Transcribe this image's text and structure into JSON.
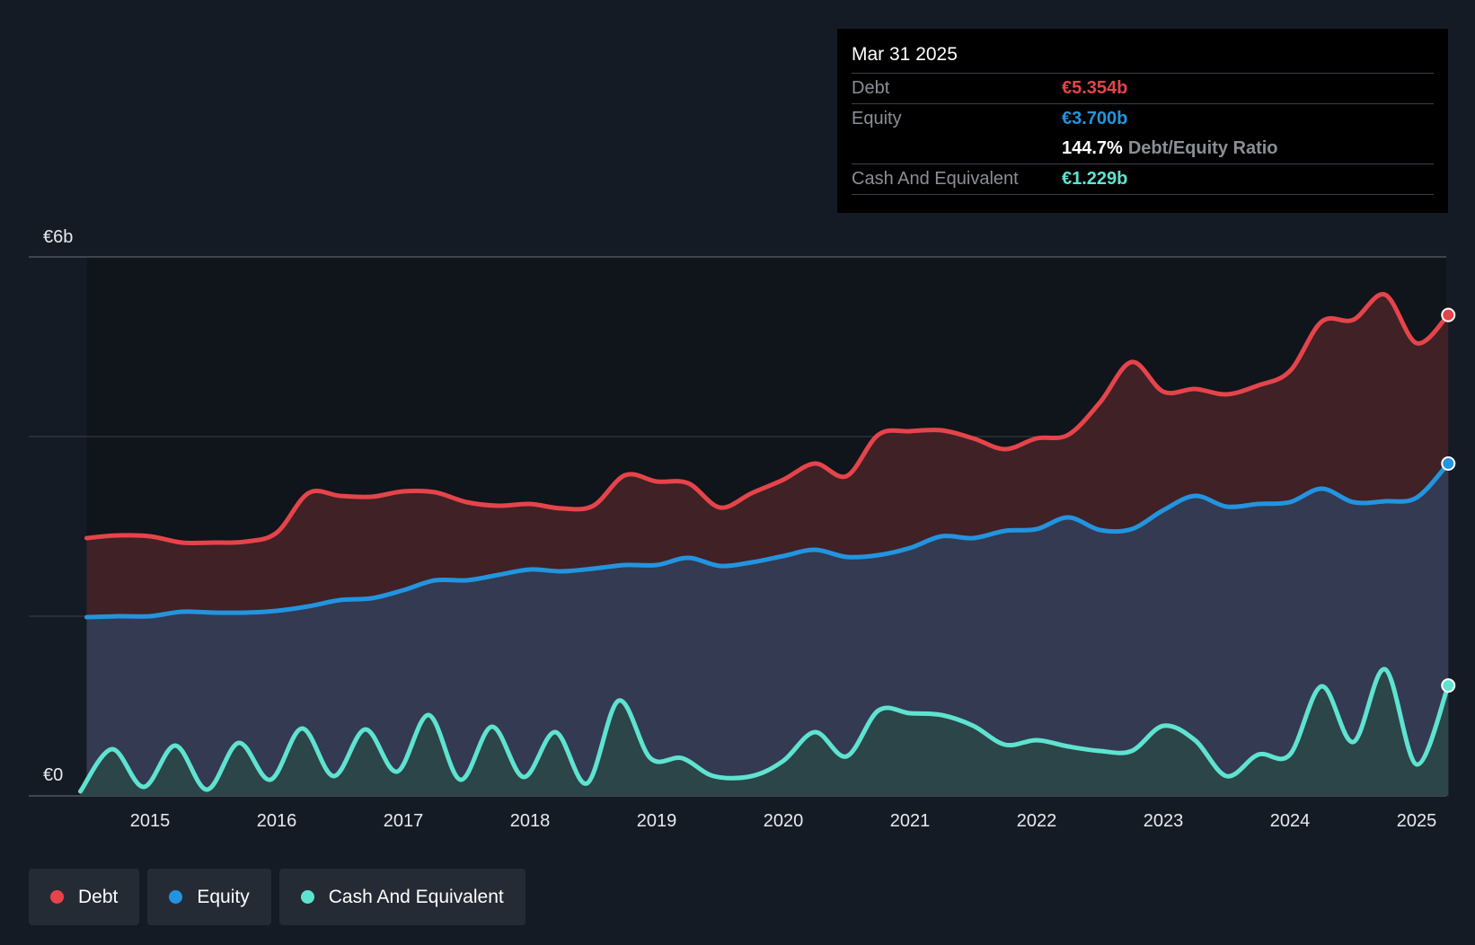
{
  "tooltip": {
    "date": "Mar 31 2025",
    "debt_label": "Debt",
    "debt_value": "€5.354b",
    "equity_label": "Equity",
    "equity_value": "€3.700b",
    "ratio_value": "144.7%",
    "ratio_label": "Debt/Equity Ratio",
    "cash_label": "Cash And Equivalent",
    "cash_value": "€1.229b"
  },
  "legend": [
    {
      "label": "Debt",
      "color": "#e5444a"
    },
    {
      "label": "Equity",
      "color": "#2394df"
    },
    {
      "label": "Cash And Equivalent",
      "color": "#5fe3d0"
    }
  ],
  "chart_data": {
    "type": "area",
    "title": "",
    "xlabel": "",
    "ylabel": "",
    "ylim": [
      0,
      6
    ],
    "y_unit": "€b",
    "y_tick_labels": [
      {
        "value": 6,
        "label": "€6b"
      },
      {
        "value": 0,
        "label": "€0"
      }
    ],
    "y_gridlines": [
      0,
      2,
      4,
      6
    ],
    "x_range": [
      2014.45,
      2025.25
    ],
    "x_ticks": [
      2015,
      2016,
      2017,
      2018,
      2019,
      2020,
      2021,
      2022,
      2023,
      2024,
      2025
    ],
    "x_tick_labels": [
      "2015",
      "2016",
      "2017",
      "2018",
      "2019",
      "2020",
      "2021",
      "2022",
      "2023",
      "2024",
      "2025"
    ],
    "series": [
      {
        "name": "Debt",
        "color": "#e5444a",
        "fill": "#3f2126",
        "points": [
          [
            2014.5,
            2.87
          ],
          [
            2014.75,
            2.9
          ],
          [
            2015.0,
            2.89
          ],
          [
            2015.25,
            2.82
          ],
          [
            2015.5,
            2.82
          ],
          [
            2015.75,
            2.83
          ],
          [
            2016.0,
            2.93
          ],
          [
            2016.25,
            3.37
          ],
          [
            2016.5,
            3.34
          ],
          [
            2016.75,
            3.33
          ],
          [
            2017.0,
            3.39
          ],
          [
            2017.25,
            3.38
          ],
          [
            2017.5,
            3.27
          ],
          [
            2017.75,
            3.23
          ],
          [
            2018.0,
            3.25
          ],
          [
            2018.25,
            3.2
          ],
          [
            2018.5,
            3.23
          ],
          [
            2018.75,
            3.57
          ],
          [
            2019.0,
            3.5
          ],
          [
            2019.25,
            3.48
          ],
          [
            2019.5,
            3.21
          ],
          [
            2019.75,
            3.37
          ],
          [
            2020.0,
            3.52
          ],
          [
            2020.25,
            3.7
          ],
          [
            2020.5,
            3.56
          ],
          [
            2020.75,
            4.02
          ],
          [
            2021.0,
            4.06
          ],
          [
            2021.25,
            4.07
          ],
          [
            2021.5,
            3.98
          ],
          [
            2021.75,
            3.86
          ],
          [
            2022.0,
            3.98
          ],
          [
            2022.25,
            4.02
          ],
          [
            2022.5,
            4.38
          ],
          [
            2022.75,
            4.83
          ],
          [
            2023.0,
            4.5
          ],
          [
            2023.25,
            4.53
          ],
          [
            2023.5,
            4.47
          ],
          [
            2023.75,
            4.57
          ],
          [
            2024.0,
            4.73
          ],
          [
            2024.25,
            5.28
          ],
          [
            2024.5,
            5.3
          ],
          [
            2024.75,
            5.58
          ],
          [
            2025.0,
            5.04
          ],
          [
            2025.25,
            5.354
          ]
        ]
      },
      {
        "name": "Equity",
        "color": "#2394df",
        "fill": "#333a52",
        "points": [
          [
            2014.5,
            1.99
          ],
          [
            2014.75,
            2.0
          ],
          [
            2015.0,
            2.0
          ],
          [
            2015.25,
            2.05
          ],
          [
            2015.5,
            2.04
          ],
          [
            2015.75,
            2.04
          ],
          [
            2016.0,
            2.06
          ],
          [
            2016.25,
            2.11
          ],
          [
            2016.5,
            2.18
          ],
          [
            2016.75,
            2.2
          ],
          [
            2017.0,
            2.29
          ],
          [
            2017.25,
            2.4
          ],
          [
            2017.5,
            2.4
          ],
          [
            2017.75,
            2.46
          ],
          [
            2018.0,
            2.52
          ],
          [
            2018.25,
            2.5
          ],
          [
            2018.5,
            2.53
          ],
          [
            2018.75,
            2.57
          ],
          [
            2019.0,
            2.57
          ],
          [
            2019.25,
            2.65
          ],
          [
            2019.5,
            2.56
          ],
          [
            2019.75,
            2.6
          ],
          [
            2020.0,
            2.67
          ],
          [
            2020.25,
            2.74
          ],
          [
            2020.5,
            2.66
          ],
          [
            2020.75,
            2.68
          ],
          [
            2021.0,
            2.76
          ],
          [
            2021.25,
            2.89
          ],
          [
            2021.5,
            2.87
          ],
          [
            2021.75,
            2.95
          ],
          [
            2022.0,
            2.97
          ],
          [
            2022.25,
            3.1
          ],
          [
            2022.5,
            2.96
          ],
          [
            2022.75,
            2.97
          ],
          [
            2023.0,
            3.18
          ],
          [
            2023.25,
            3.34
          ],
          [
            2023.5,
            3.22
          ],
          [
            2023.75,
            3.25
          ],
          [
            2024.0,
            3.27
          ],
          [
            2024.25,
            3.42
          ],
          [
            2024.5,
            3.27
          ],
          [
            2024.75,
            3.28
          ],
          [
            2025.0,
            3.32
          ],
          [
            2025.25,
            3.7
          ]
        ]
      },
      {
        "name": "Cash And Equivalent",
        "color": "#5fe3d0",
        "fill": "#2b4548",
        "points": [
          [
            2014.45,
            0.05
          ],
          [
            2014.7,
            0.52
          ],
          [
            2014.95,
            0.1
          ],
          [
            2015.2,
            0.56
          ],
          [
            2015.45,
            0.07
          ],
          [
            2015.7,
            0.59
          ],
          [
            2015.95,
            0.18
          ],
          [
            2016.2,
            0.75
          ],
          [
            2016.45,
            0.22
          ],
          [
            2016.7,
            0.74
          ],
          [
            2016.95,
            0.27
          ],
          [
            2017.2,
            0.9
          ],
          [
            2017.45,
            0.18
          ],
          [
            2017.7,
            0.77
          ],
          [
            2017.95,
            0.21
          ],
          [
            2018.2,
            0.71
          ],
          [
            2018.45,
            0.14
          ],
          [
            2018.7,
            1.06
          ],
          [
            2018.95,
            0.42
          ],
          [
            2019.2,
            0.42
          ],
          [
            2019.45,
            0.22
          ],
          [
            2019.75,
            0.22
          ],
          [
            2020.0,
            0.39
          ],
          [
            2020.25,
            0.71
          ],
          [
            2020.5,
            0.44
          ],
          [
            2020.75,
            0.95
          ],
          [
            2021.0,
            0.92
          ],
          [
            2021.25,
            0.9
          ],
          [
            2021.5,
            0.78
          ],
          [
            2021.75,
            0.57
          ],
          [
            2022.0,
            0.62
          ],
          [
            2022.25,
            0.55
          ],
          [
            2022.5,
            0.5
          ],
          [
            2022.75,
            0.5
          ],
          [
            2023.0,
            0.78
          ],
          [
            2023.25,
            0.62
          ],
          [
            2023.5,
            0.22
          ],
          [
            2023.75,
            0.46
          ],
          [
            2024.0,
            0.46
          ],
          [
            2024.25,
            1.22
          ],
          [
            2024.5,
            0.6
          ],
          [
            2024.75,
            1.41
          ],
          [
            2025.0,
            0.35
          ],
          [
            2025.25,
            1.229
          ]
        ]
      }
    ],
    "highlight_x": 2025.25
  }
}
